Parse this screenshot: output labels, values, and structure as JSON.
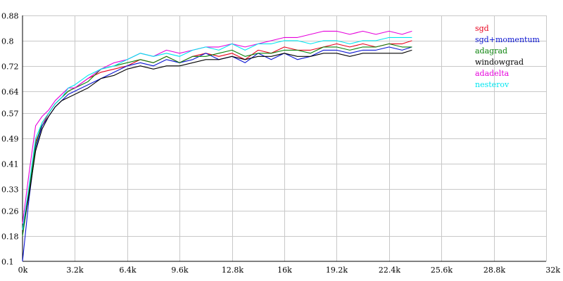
{
  "chart_data": {
    "type": "line",
    "title": "",
    "xlabel": "",
    "ylabel": "",
    "xlim": [
      0,
      32000
    ],
    "ylim": [
      0.1,
      0.88
    ],
    "grid": true,
    "legend_position": "top-right",
    "x_ticks": [
      "0k",
      "3.2k",
      "6.4k",
      "9.6k",
      "12.8k",
      "16k",
      "19.2k",
      "22.4k",
      "25.6k",
      "28.8k",
      "32k"
    ],
    "x_tick_values": [
      0,
      3200,
      6400,
      9600,
      12800,
      16000,
      19200,
      22400,
      25600,
      28800,
      32000
    ],
    "y_ticks": [
      "0.1",
      "0.18",
      "0.26",
      "0.33",
      "0.41",
      "0.49",
      "0.57",
      "0.64",
      "0.72",
      "0.8",
      "0.88"
    ],
    "y_tick_values": [
      0.1,
      0.18,
      0.26,
      0.33,
      0.41,
      0.49,
      0.57,
      0.64,
      0.72,
      0.8,
      0.88
    ],
    "x": [
      0,
      400,
      800,
      1200,
      1600,
      2000,
      2400,
      2800,
      3200,
      4000,
      4800,
      5600,
      6400,
      7200,
      8000,
      8800,
      9600,
      10400,
      11200,
      12000,
      12800,
      13600,
      14400,
      15200,
      16000,
      16800,
      17600,
      18400,
      19200,
      20000,
      20800,
      21600,
      22400,
      23200,
      23800
    ],
    "series": [
      {
        "name": "sgd",
        "color": "#e8001c",
        "values": [
          0.2,
          0.33,
          0.48,
          0.53,
          0.57,
          0.6,
          0.62,
          0.64,
          0.65,
          0.68,
          0.7,
          0.71,
          0.72,
          0.74,
          0.73,
          0.75,
          0.73,
          0.75,
          0.76,
          0.75,
          0.76,
          0.74,
          0.77,
          0.76,
          0.78,
          0.77,
          0.77,
          0.78,
          0.79,
          0.78,
          0.79,
          0.78,
          0.79,
          0.79,
          0.8
        ]
      },
      {
        "name": "sgd+momentum",
        "color": "#0a14d2",
        "values": [
          0.1,
          0.3,
          0.46,
          0.53,
          0.56,
          0.59,
          0.61,
          0.63,
          0.64,
          0.66,
          0.68,
          0.7,
          0.72,
          0.73,
          0.72,
          0.74,
          0.73,
          0.74,
          0.76,
          0.74,
          0.75,
          0.73,
          0.76,
          0.74,
          0.76,
          0.74,
          0.75,
          0.77,
          0.77,
          0.76,
          0.77,
          0.77,
          0.78,
          0.77,
          0.78
        ]
      },
      {
        "name": "adagrad",
        "color": "#0a820a",
        "values": [
          0.18,
          0.32,
          0.47,
          0.54,
          0.57,
          0.6,
          0.62,
          0.64,
          0.65,
          0.67,
          0.71,
          0.72,
          0.73,
          0.74,
          0.73,
          0.75,
          0.73,
          0.75,
          0.75,
          0.76,
          0.77,
          0.75,
          0.76,
          0.76,
          0.77,
          0.77,
          0.76,
          0.78,
          0.78,
          0.77,
          0.78,
          0.78,
          0.79,
          0.78,
          0.78
        ]
      },
      {
        "name": "windowgrad",
        "color": "#000000",
        "values": [
          0.2,
          0.31,
          0.45,
          0.52,
          0.56,
          0.59,
          0.61,
          0.62,
          0.63,
          0.65,
          0.68,
          0.69,
          0.71,
          0.72,
          0.71,
          0.72,
          0.72,
          0.73,
          0.74,
          0.74,
          0.75,
          0.74,
          0.75,
          0.75,
          0.76,
          0.75,
          0.75,
          0.76,
          0.76,
          0.75,
          0.76,
          0.76,
          0.76,
          0.76,
          0.77
        ]
      },
      {
        "name": "adadelta",
        "color": "#e600dc",
        "values": [
          0.22,
          0.38,
          0.53,
          0.56,
          0.58,
          0.61,
          0.63,
          0.65,
          0.65,
          0.68,
          0.71,
          0.73,
          0.74,
          0.76,
          0.75,
          0.77,
          0.76,
          0.77,
          0.78,
          0.78,
          0.79,
          0.78,
          0.79,
          0.8,
          0.81,
          0.81,
          0.82,
          0.83,
          0.83,
          0.82,
          0.83,
          0.82,
          0.83,
          0.82,
          0.83
        ]
      },
      {
        "name": "nesterov",
        "color": "#00e6f0",
        "values": [
          0.2,
          0.34,
          0.49,
          0.54,
          0.57,
          0.6,
          0.62,
          0.65,
          0.66,
          0.69,
          0.71,
          0.72,
          0.74,
          0.76,
          0.75,
          0.76,
          0.75,
          0.77,
          0.78,
          0.77,
          0.79,
          0.77,
          0.79,
          0.79,
          0.8,
          0.8,
          0.79,
          0.8,
          0.8,
          0.79,
          0.8,
          0.8,
          0.81,
          0.81,
          0.81
        ]
      }
    ]
  }
}
